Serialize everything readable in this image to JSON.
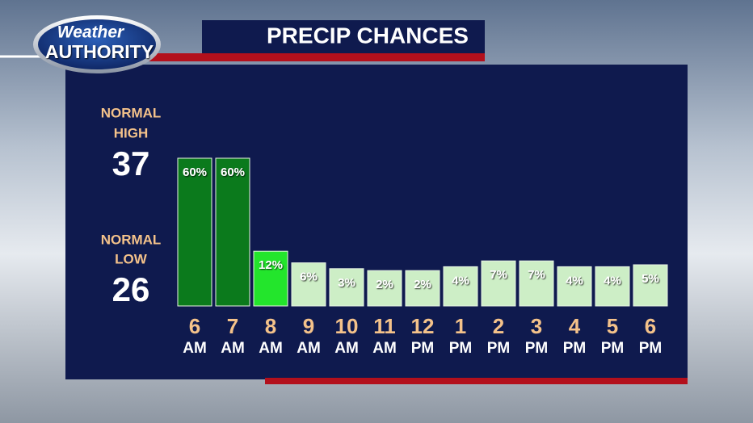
{
  "chart_data": {
    "type": "bar",
    "title": "PRECIP CHANCES",
    "logo": {
      "top": "Weather",
      "bottom": "AUTHORITY"
    },
    "normal_high": {
      "lines": [
        "NORMAL",
        "HIGH"
      ],
      "value": 37
    },
    "normal_low": {
      "lines": [
        "NORMAL",
        "LOW"
      ],
      "value": 26
    },
    "categories": [
      "6",
      "7",
      "8",
      "9",
      "10",
      "11",
      "12",
      "1",
      "2",
      "3",
      "4",
      "5",
      "6"
    ],
    "periods": [
      "AM",
      "AM",
      "AM",
      "AM",
      "AM",
      "AM",
      "PM",
      "PM",
      "PM",
      "PM",
      "PM",
      "PM",
      "PM"
    ],
    "values": [
      60,
      60,
      12,
      6,
      3,
      2,
      2,
      4,
      7,
      7,
      4,
      4,
      5
    ],
    "value_labels": [
      "60%",
      "60%",
      "12%",
      "6%",
      "3%",
      "2%",
      "2%",
      "4%",
      "7%",
      "7%",
      "4%",
      "4%",
      "5%"
    ],
    "colors": [
      "#0b7a1c",
      "#0b7a1c",
      "#23e52c",
      "#cdeec6",
      "#cdeec6",
      "#cdeec6",
      "#cdeec6",
      "#cdeec6",
      "#cdeec6",
      "#cdeec6",
      "#cdeec6",
      "#cdeec6",
      "#cdeec6"
    ]
  }
}
